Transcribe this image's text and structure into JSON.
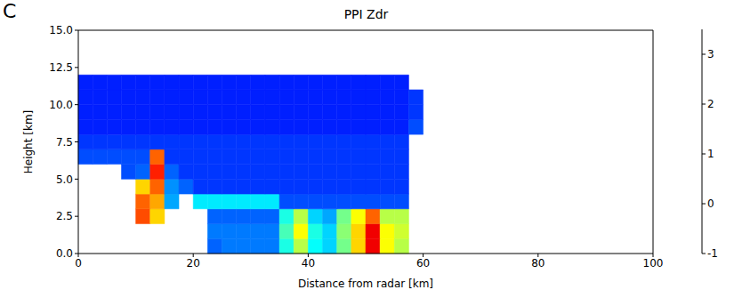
{
  "chart_data": {
    "type": "heatmap",
    "panel": "C",
    "title": "PPI Zdr",
    "x_label": "Distance from radar [km]",
    "y_label": "Height [km]",
    "xlim": [
      0,
      100
    ],
    "ylim": [
      0,
      15
    ],
    "xticks": [
      0,
      20,
      40,
      60,
      80,
      100
    ],
    "yticks": [
      {
        "value": 0,
        "label": "0.0"
      },
      {
        "value": 2.5,
        "label": "2.5"
      },
      {
        "value": 5,
        "label": "5.0"
      },
      {
        "value": 7.5,
        "label": "7.5"
      },
      {
        "value": 10,
        "label": "10.0"
      },
      {
        "value": 12.5,
        "label": "12.5"
      },
      {
        "value": 15,
        "label": "15.0"
      }
    ],
    "x_edges": [
      0,
      2.5,
      5,
      7.5,
      10,
      12.5,
      15,
      17.5,
      20,
      22.5,
      25,
      27.5,
      30,
      32.5,
      35,
      37.5,
      40,
      42.5,
      45,
      47.5,
      50,
      52.5,
      55,
      57.5,
      60
    ],
    "y_edges": [
      0,
      1,
      2,
      3,
      4,
      5,
      6,
      7,
      8,
      9,
      10,
      11,
      12
    ],
    "z": [
      [
        null,
        null,
        null,
        null,
        null,
        null,
        null,
        null,
        null,
        0.0,
        0.1,
        0.1,
        0.1,
        0.1,
        0.8,
        1.5,
        0.7,
        0.5,
        1.2,
        2.0,
        3.0,
        1.8,
        1.5,
        null
      ],
      [
        null,
        null,
        null,
        null,
        null,
        null,
        null,
        null,
        null,
        0.1,
        0.1,
        0.1,
        0.1,
        0.1,
        1.0,
        1.8,
        0.8,
        0.5,
        1.3,
        2.0,
        3.0,
        1.8,
        1.6,
        null
      ],
      [
        null,
        null,
        null,
        null,
        2.6,
        2.0,
        null,
        null,
        null,
        0.0,
        0.0,
        0.0,
        0.0,
        0.0,
        0.8,
        1.5,
        0.5,
        0.3,
        1.2,
        1.8,
        2.5,
        1.5,
        1.5,
        null
      ],
      [
        null,
        null,
        null,
        null,
        2.5,
        2.2,
        0.3,
        null,
        0.6,
        0.6,
        0.6,
        0.6,
        0.6,
        0.6,
        -0.1,
        -0.1,
        -0.1,
        -0.1,
        -0.1,
        -0.1,
        -0.1,
        -0.1,
        -0.1,
        null
      ],
      [
        null,
        null,
        null,
        null,
        2.0,
        2.5,
        0.2,
        0.0,
        -0.2,
        -0.2,
        -0.2,
        -0.2,
        -0.2,
        -0.2,
        -0.2,
        -0.2,
        -0.2,
        -0.2,
        -0.2,
        -0.2,
        -0.2,
        -0.2,
        -0.2,
        null
      ],
      [
        null,
        null,
        null,
        -0.1,
        0.0,
        2.8,
        0.0,
        -0.2,
        -0.2,
        -0.2,
        -0.2,
        -0.2,
        -0.2,
        -0.2,
        -0.2,
        -0.2,
        -0.2,
        -0.2,
        -0.2,
        -0.2,
        -0.2,
        -0.2,
        -0.2,
        null
      ],
      [
        -0.1,
        -0.1,
        -0.1,
        -0.1,
        -0.1,
        2.5,
        -0.2,
        -0.2,
        -0.2,
        -0.2,
        -0.2,
        -0.2,
        -0.2,
        -0.2,
        -0.2,
        -0.2,
        -0.2,
        -0.2,
        -0.2,
        -0.2,
        -0.2,
        -0.2,
        -0.2,
        null
      ],
      [
        -0.2,
        -0.2,
        -0.2,
        -0.2,
        -0.2,
        -0.2,
        -0.2,
        -0.2,
        -0.2,
        -0.2,
        -0.2,
        -0.2,
        -0.2,
        -0.2,
        -0.2,
        -0.2,
        -0.2,
        -0.2,
        -0.2,
        -0.2,
        -0.2,
        -0.2,
        -0.2,
        null
      ],
      [
        -0.3,
        -0.3,
        -0.3,
        -0.3,
        -0.3,
        -0.3,
        -0.3,
        -0.3,
        -0.3,
        -0.3,
        -0.3,
        -0.3,
        -0.3,
        -0.3,
        -0.3,
        -0.3,
        -0.3,
        -0.3,
        -0.3,
        -0.3,
        -0.3,
        -0.3,
        -0.3,
        -0.1
      ],
      [
        -0.3,
        -0.3,
        -0.3,
        -0.3,
        -0.3,
        -0.3,
        -0.3,
        -0.3,
        -0.3,
        -0.3,
        -0.3,
        -0.3,
        -0.3,
        -0.3,
        -0.3,
        -0.3,
        -0.3,
        -0.3,
        -0.3,
        -0.3,
        -0.3,
        -0.3,
        -0.3,
        -0.2
      ],
      [
        -0.3,
        -0.3,
        -0.3,
        -0.3,
        -0.3,
        -0.3,
        -0.3,
        -0.3,
        -0.3,
        -0.3,
        -0.3,
        -0.3,
        -0.3,
        -0.3,
        -0.3,
        -0.3,
        -0.3,
        -0.3,
        -0.3,
        -0.3,
        -0.3,
        -0.3,
        -0.3,
        -0.2
      ],
      [
        -0.3,
        -0.3,
        -0.3,
        -0.3,
        -0.3,
        -0.3,
        -0.3,
        -0.3,
        -0.3,
        -0.3,
        -0.3,
        -0.3,
        -0.3,
        -0.3,
        -0.3,
        -0.3,
        -0.3,
        -0.3,
        -0.3,
        -0.3,
        -0.3,
        -0.3,
        -0.3,
        null
      ]
    ],
    "colorbar": {
      "range": [
        -1,
        3.5
      ],
      "ticks": [
        -1,
        0,
        1,
        2,
        3
      ]
    }
  }
}
